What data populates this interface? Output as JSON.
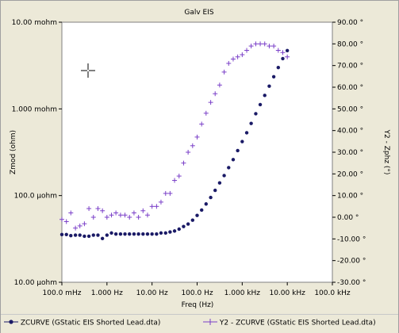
{
  "chart_data": {
    "type": "scatter",
    "title": "Galv EIS",
    "xlabel": "Freq (Hz)",
    "ylabel": "Zmod (ohm)",
    "y2label": "Y2 - Zphz (°)",
    "x_scale": "log",
    "xlim": [
      0.1,
      100000
    ],
    "x_ticks": [
      0.1,
      1,
      10,
      100,
      1000,
      10000,
      100000
    ],
    "x_tick_labels": [
      "100.0 mHz",
      "1.000 Hz",
      "10.00 Hz",
      "100.0 Hz",
      "1.000 kHz",
      "10.00 kHz",
      "100.0 kHz"
    ],
    "y_scale": "log",
    "ylim": [
      1e-05,
      0.01
    ],
    "y_ticks": [
      0.01,
      0.001,
      0.0001,
      1e-05
    ],
    "y_tick_labels": [
      "10.00 mohm",
      "1.000 mohm",
      "100.0 µohm",
      "10.00 µohm"
    ],
    "y2lim": [
      -30,
      90
    ],
    "y2_ticks": [
      90,
      80,
      70,
      60,
      50,
      40,
      30,
      20,
      10,
      0,
      -10,
      -20,
      -30
    ],
    "y2_tick_labels": [
      "90.00 °",
      "80.00 °",
      "70.00 °",
      "60.00 °",
      "50.00 °",
      "40.00 °",
      "30.00 °",
      "20.00 °",
      "10.00 °",
      "0.00 °",
      "-10.00 °",
      "-20.00 °",
      "-30.00 °"
    ],
    "legend_position": "bottom",
    "series": [
      {
        "name": "ZCURVE (GStatic EIS Shorted Lead.dta)",
        "axis": "y",
        "color": "#1a1a66",
        "marker": "dot",
        "x": [
          0.1,
          0.126,
          0.158,
          0.2,
          0.251,
          0.316,
          0.398,
          0.501,
          0.631,
          0.794,
          1,
          1.26,
          1.58,
          2,
          2.51,
          3.16,
          3.98,
          5.01,
          6.31,
          7.94,
          10,
          12.6,
          15.8,
          20,
          25.1,
          31.6,
          39.8,
          50.1,
          63.1,
          79.4,
          100,
          126,
          158,
          200,
          251,
          316,
          398,
          501,
          631,
          794,
          1000,
          1260,
          1580,
          2000,
          2510,
          3160,
          3980,
          5010,
          6310,
          7940,
          10000
        ],
        "y": [
          3.55e-05,
          3.55e-05,
          3.45e-05,
          3.5e-05,
          3.5e-05,
          3.4e-05,
          3.4e-05,
          3.5e-05,
          3.5e-05,
          3.2e-05,
          3.5e-05,
          3.7e-05,
          3.6e-05,
          3.6e-05,
          3.6e-05,
          3.6e-05,
          3.6e-05,
          3.6e-05,
          3.6e-05,
          3.6e-05,
          3.6e-05,
          3.6e-05,
          3.7e-05,
          3.7e-05,
          3.8e-05,
          3.9e-05,
          4.1e-05,
          4.4e-05,
          4.7e-05,
          5.2e-05,
          5.9e-05,
          6.8e-05,
          8e-05,
          9.5e-05,
          0.000115,
          0.00014,
          0.00017,
          0.00021,
          0.00026,
          0.00033,
          0.00042,
          0.00053,
          0.00068,
          0.00088,
          0.00112,
          0.00143,
          0.00183,
          0.00235,
          0.003,
          0.0038,
          0.0047
        ]
      },
      {
        "name": "Y2 - ZCURVE (GStatic EIS Shorted Lead.dta)",
        "axis": "y2",
        "color": "#7a3fc8",
        "marker": "plus",
        "x": [
          0.1,
          0.126,
          0.158,
          0.2,
          0.251,
          0.316,
          0.398,
          0.501,
          0.631,
          0.794,
          1,
          1.26,
          1.58,
          2,
          2.51,
          3.16,
          3.98,
          5.01,
          6.31,
          7.94,
          10,
          12.6,
          15.8,
          20,
          25.1,
          31.6,
          39.8,
          50.1,
          63.1,
          79.4,
          100,
          126,
          158,
          200,
          251,
          316,
          398,
          501,
          631,
          794,
          1000,
          1260,
          1580,
          2000,
          2510,
          3160,
          3980,
          5010,
          6310,
          7940,
          10000
        ],
        "y": [
          -1,
          -2,
          2,
          -5,
          -4,
          -3,
          4,
          0,
          4,
          3,
          0,
          1,
          2,
          1,
          1,
          0,
          2,
          0,
          3,
          1,
          5,
          5,
          7,
          11,
          11,
          17,
          19,
          25,
          30,
          33,
          37,
          43,
          48,
          53,
          57,
          61,
          67,
          71,
          73,
          74,
          75,
          77,
          79,
          80,
          80,
          80,
          79,
          79,
          77,
          76,
          74
        ]
      }
    ],
    "annotations": []
  }
}
